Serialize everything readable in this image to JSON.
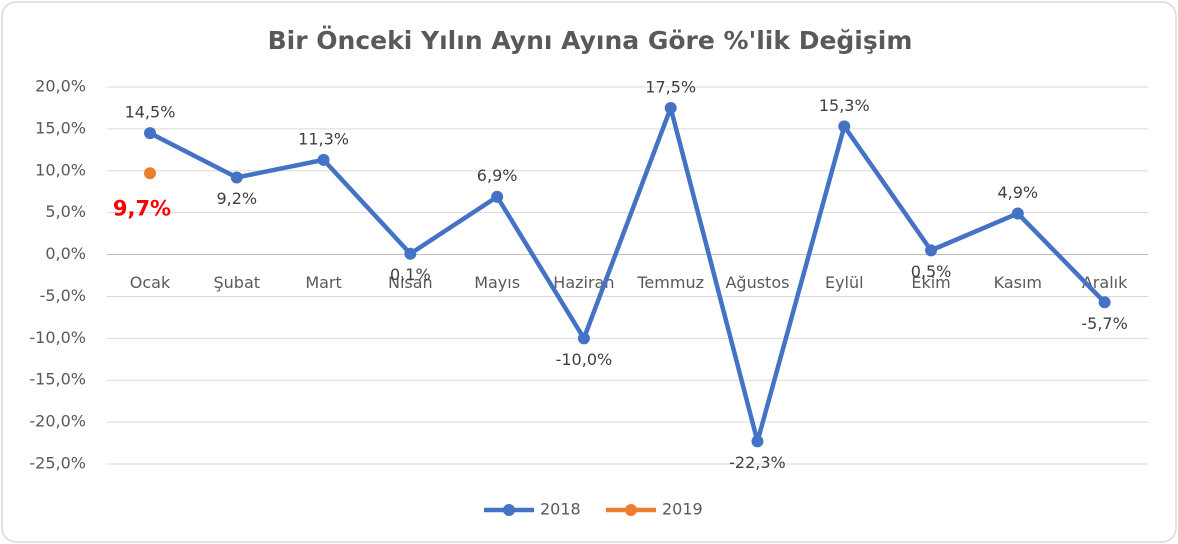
{
  "chart_data": {
    "type": "line",
    "title": "Bir Önceki Yılın Aynı Ayına Göre %'lik Değişim",
    "categories": [
      "Ocak",
      "Şubat",
      "Mart",
      "Nisan",
      "Mayıs",
      "Haziran",
      "Temmuz",
      "Ağustos",
      "Eylül",
      "Ekim",
      "Kasım",
      "Aralık"
    ],
    "series": [
      {
        "name": "2018",
        "color": "#4472c4",
        "values": [
          14.5,
          9.2,
          11.3,
          0.1,
          6.9,
          -10.0,
          17.5,
          -22.3,
          15.3,
          0.5,
          4.9,
          -5.7
        ],
        "value_labels": [
          "14,5%",
          "9,2%",
          "11,3%",
          "0,1%",
          "6,9%",
          "-10,0%",
          "17,5%",
          "-22,3%",
          "15,3%",
          "0,5%",
          "4,9%",
          "-5,7%"
        ],
        "label_color": "#404040"
      },
      {
        "name": "2019",
        "color": "#ed7d31",
        "values": [
          9.7,
          null,
          null,
          null,
          null,
          null,
          null,
          null,
          null,
          null,
          null,
          null
        ],
        "value_labels": [
          "9,7%",
          null,
          null,
          null,
          null,
          null,
          null,
          null,
          null,
          null,
          null,
          null
        ],
        "label_color": "#ff0000"
      }
    ],
    "ylim": [
      -25,
      20
    ],
    "yticks": [
      {
        "value": -25,
        "label": "-25,0%"
      },
      {
        "value": -20,
        "label": "-20,0%"
      },
      {
        "value": -15,
        "label": "-15,0%"
      },
      {
        "value": -10,
        "label": "-10,0%"
      },
      {
        "value": -5,
        "label": "-5,0%"
      },
      {
        "value": 0,
        "label": "0,0%"
      },
      {
        "value": 5,
        "label": "5,0%"
      },
      {
        "value": 10,
        "label": "10,0%"
      },
      {
        "value": 15,
        "label": "15,0%"
      },
      {
        "value": 20,
        "label": "20,0%"
      }
    ],
    "grid": true,
    "legend": "bottom"
  }
}
